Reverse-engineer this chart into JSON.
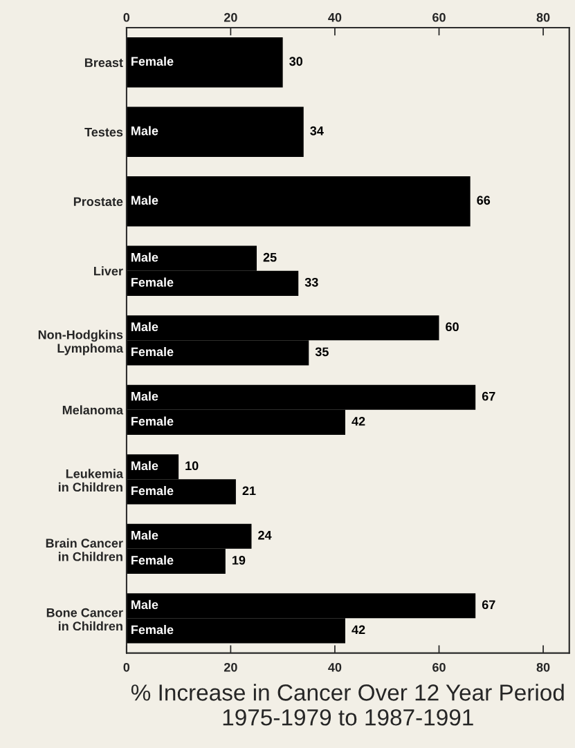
{
  "chart_data": {
    "type": "bar",
    "orientation": "horizontal",
    "xlabel": "% Increase in Cancer Over 12 Year Period\n1975-1979 to 1987-1991",
    "categories": [
      "Breast",
      "Testes",
      "Prostate",
      "Liver",
      "Non-Hodgkins\nLymphoma",
      "Melanoma",
      "Leukemia\nin Children",
      "Brain Cancer\nin Children",
      "Bone Cancer\nin Children"
    ],
    "series": [
      {
        "name": "Male",
        "color": "#000000",
        "values": [
          null,
          34,
          66,
          25,
          60,
          67,
          10,
          24,
          67
        ]
      },
      {
        "name": "Female",
        "color": "#000000",
        "values": [
          30,
          null,
          null,
          33,
          35,
          42,
          21,
          19,
          42
        ]
      }
    ],
    "xlim": [
      0,
      85
    ],
    "xticks": [
      0,
      20,
      40,
      60,
      80
    ],
    "x2lim": [
      0,
      85
    ],
    "x2ticks": [
      0,
      20,
      40,
      60,
      80
    ],
    "data_labels": true,
    "legend": false,
    "grid": false
  }
}
